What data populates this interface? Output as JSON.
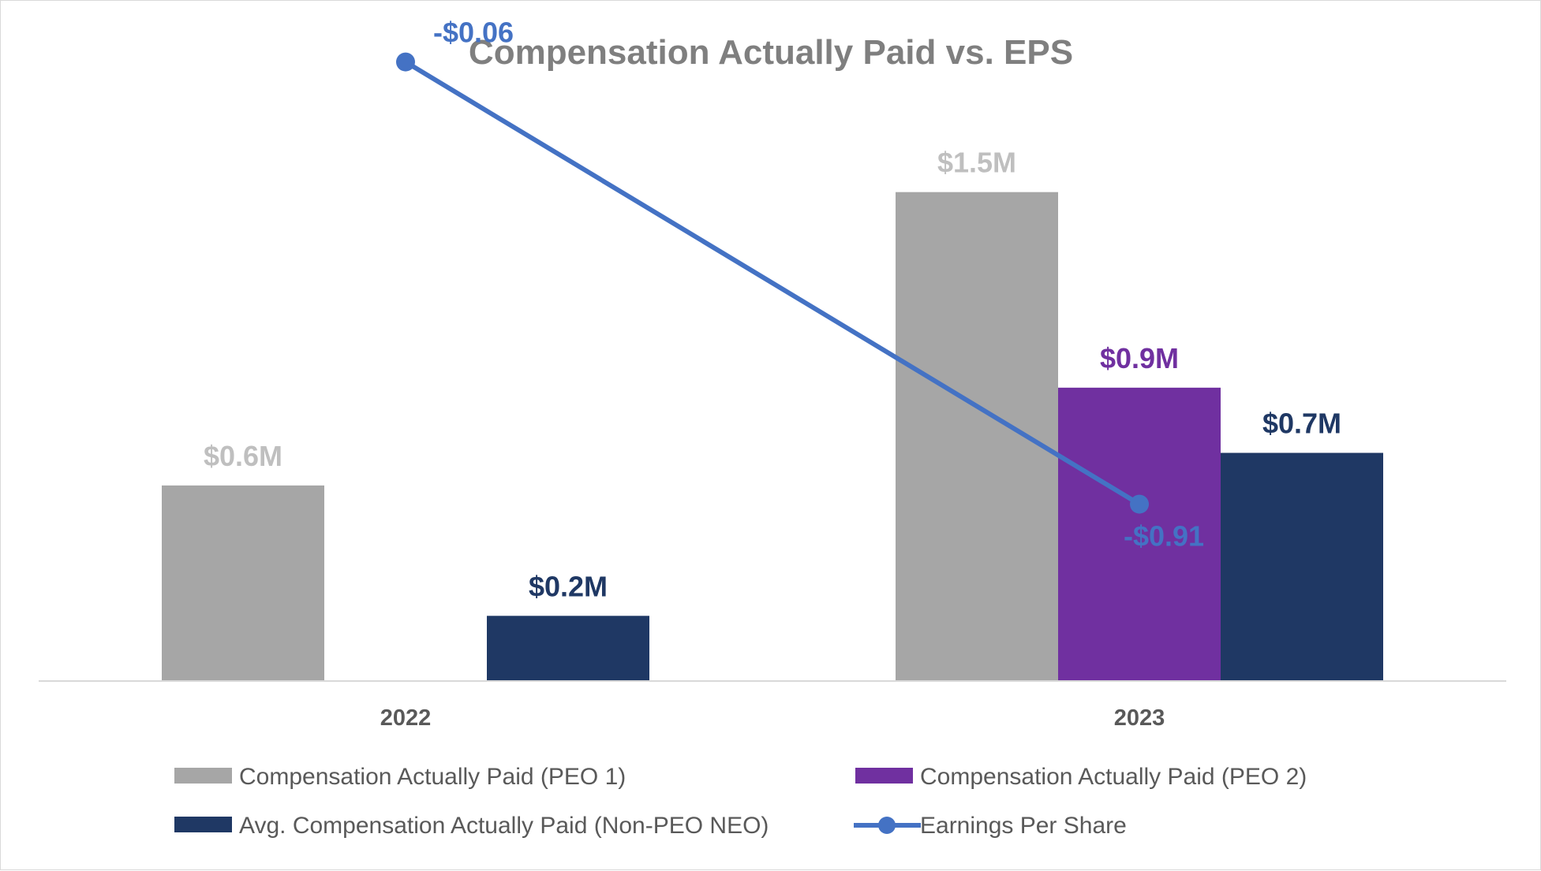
{
  "chart_data": {
    "type": "bar+line",
    "title": "Compensation Actually Paid vs. EPS",
    "categories": [
      "2022",
      "2023"
    ],
    "series": [
      {
        "name": "Compensation Actually Paid (PEO 1)",
        "kind": "bar",
        "color": "#a6a6a6",
        "label_color": "#bfbfbf",
        "values": [
          0.6,
          1.5
        ],
        "labels": [
          "$0.6M",
          "$1.5M"
        ]
      },
      {
        "name": "Compensation Actually Paid (PEO 2)",
        "kind": "bar",
        "color": "#7030a0",
        "label_color": "#7030a0",
        "values": [
          null,
          0.9
        ],
        "labels": [
          null,
          "$0.9M"
        ]
      },
      {
        "name": "Avg. Compensation Actually Paid (Non-PEO NEO)",
        "kind": "bar",
        "color": "#1f3864",
        "label_color": "#1f3864",
        "values": [
          0.2,
          0.7
        ],
        "labels": [
          "$0.2M",
          "$0.7M"
        ]
      },
      {
        "name": "Earnings Per Share",
        "kind": "line",
        "color": "#4472c4",
        "label_color": "#4472c4",
        "values": [
          -0.06,
          -0.91
        ],
        "labels": [
          "-$0.06",
          "-$0.91"
        ]
      }
    ],
    "bar_axis": {
      "ylim": [
        0,
        1.7
      ]
    },
    "line_axis": {
      "ylim": [
        -1.25,
        0.0
      ]
    },
    "xlabel": "",
    "ylabel": "",
    "grid": false,
    "legend_position": "bottom"
  }
}
